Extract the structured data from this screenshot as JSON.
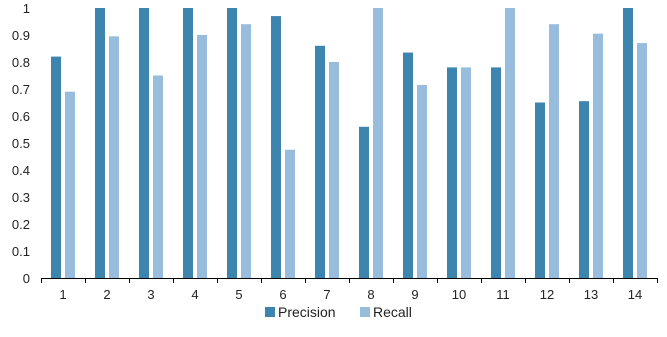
{
  "chart_data": {
    "type": "bar",
    "categories": [
      "1",
      "2",
      "3",
      "4",
      "5",
      "6",
      "7",
      "8",
      "9",
      "10",
      "11",
      "12",
      "13",
      "14"
    ],
    "series": [
      {
        "name": "Precision",
        "color": "#3d84ae",
        "values": [
          0.82,
          1.0,
          1.0,
          1.0,
          1.0,
          0.97,
          0.86,
          0.56,
          0.835,
          0.78,
          0.78,
          0.65,
          0.655,
          1.0
        ]
      },
      {
        "name": "Recall",
        "color": "#97bcdc",
        "values": [
          0.69,
          0.895,
          0.75,
          0.9,
          0.94,
          0.475,
          0.8,
          1.0,
          0.715,
          0.78,
          1.0,
          0.94,
          0.905,
          0.87
        ]
      }
    ],
    "y_ticks": [
      "0",
      "0.1",
      "0.2",
      "0.3",
      "0.4",
      "0.5",
      "0.6",
      "0.7",
      "0.8",
      "0.9",
      "1"
    ],
    "ylim": [
      0,
      1
    ],
    "grid": false,
    "legend_position": "bottom-center"
  }
}
